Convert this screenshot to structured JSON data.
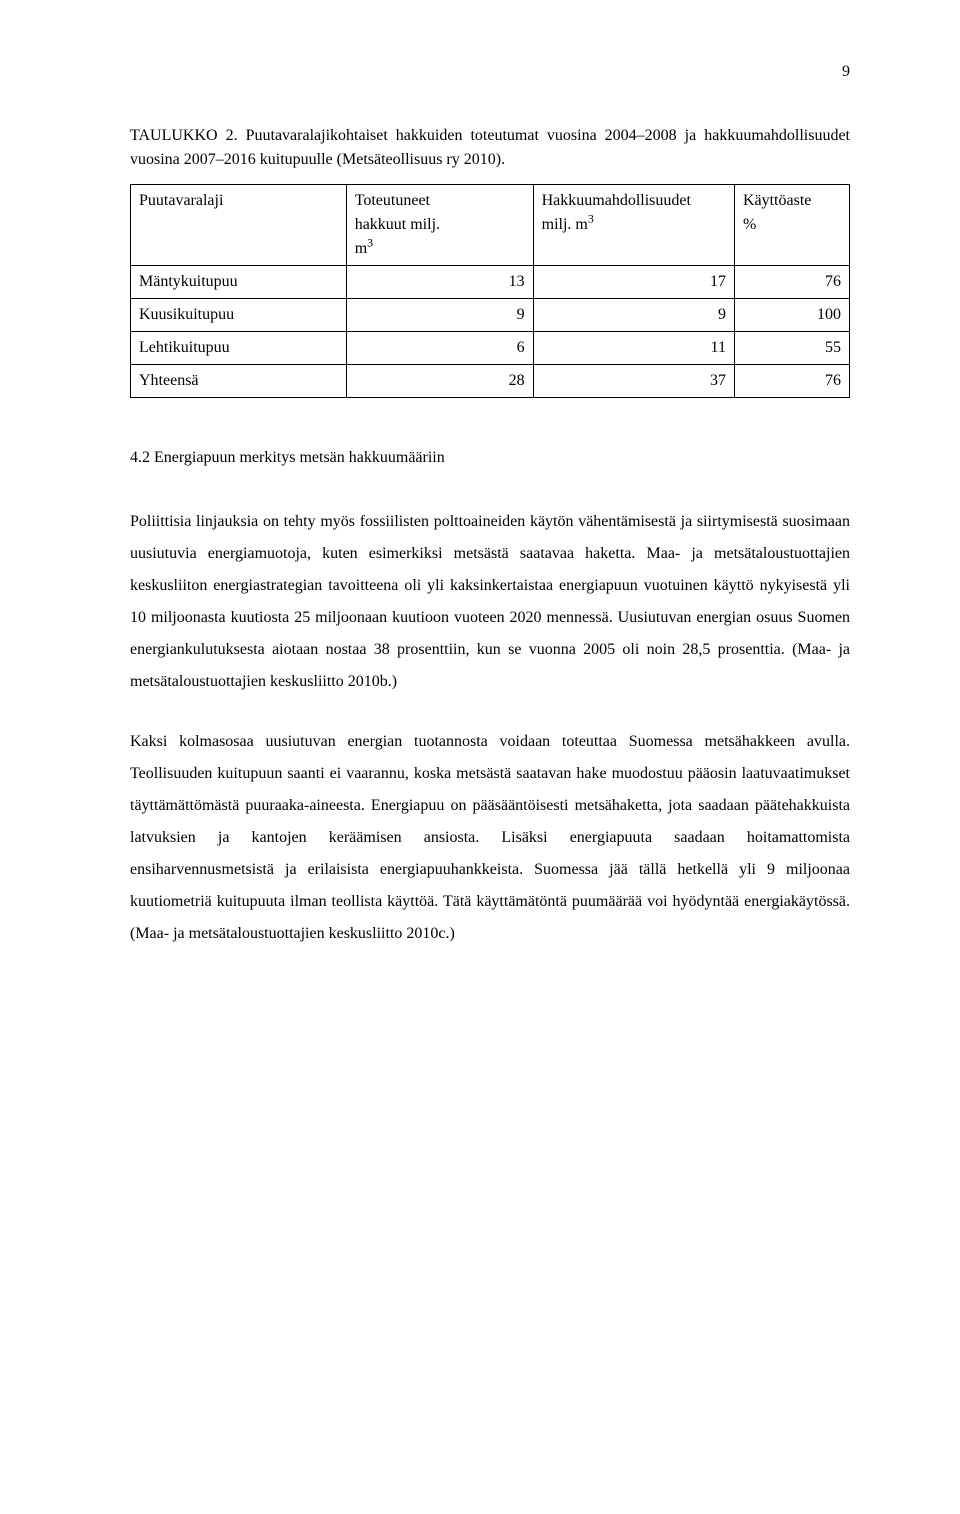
{
  "page_number": "9",
  "table_caption": "TAULUKKO 2. Puutavaralajikohtaiset hakkuiden toteutumat vuosina 2004–2008 ja hakkuumahdollisuudet vuosina 2007–2016 kuitupuulle (Metsäteollisuus ry 2010).",
  "table": {
    "header": {
      "col1": "Puutavaralaji",
      "col2_line1": "Toteutuneet",
      "col2_line2": "hakkuut milj.",
      "col2_line3": "m",
      "col3_line1": "Hakkuumahdollisuudet",
      "col3_line2": "milj. m",
      "col4_line1": "Käyttöaste",
      "col4_line2": "%"
    },
    "rows": [
      {
        "label": "Mäntykuitupuu",
        "v1": "13",
        "v2": "17",
        "v3": "76"
      },
      {
        "label": "Kuusikuitupuu",
        "v1": "9",
        "v2": "9",
        "v3": "100"
      },
      {
        "label": "Lehtikuitupuu",
        "v1": "6",
        "v2": "11",
        "v3": "55"
      },
      {
        "label": "Yhteensä",
        "v1": "28",
        "v2": "37",
        "v3": "76"
      }
    ]
  },
  "section_heading": "4.2 Energiapuun merkitys metsän hakkuumääriin",
  "paragraph1": "Poliittisia linjauksia on tehty myös fossiilisten polttoaineiden käytön vähentämisestä ja siirtymisestä suosimaan uusiutuvia energiamuotoja, kuten esimerkiksi metsästä saatavaa haketta. Maa- ja metsätaloustuottajien keskusliiton energiastrategian tavoitteena oli yli kaksinkertaistaa energiapuun vuotuinen käyttö nykyisestä yli 10 miljoonasta kuutiosta 25 miljoonaan kuutioon vuoteen 2020 mennessä. Uusiutuvan energian osuus Suomen energiankulutuksesta aiotaan nostaa 38 prosenttiin, kun se vuonna 2005 oli noin 28,5 prosenttia. (Maa- ja metsätaloustuottajien keskusliitto 2010b.)",
  "paragraph2": "Kaksi kolmasosaa uusiutuvan energian tuotannosta voidaan toteuttaa Suomessa metsähakkeen avulla. Teollisuuden kuitupuun saanti ei vaarannu, koska metsästä saatavan hake muodostuu pääosin laatuvaatimukset täyttämättömästä puuraaka-aineesta. Energiapuu on pääsääntöisesti metsähaketta, jota saadaan päätehakkuista latvuksien ja kantojen keräämisen ansiosta. Lisäksi energiapuuta saadaan hoitamattomista ensiharvennusmetsistä ja erilaisista energiapuuhankkeista. Suomessa jää tällä hetkellä yli 9 miljoonaa kuutiometriä kuitupuuta ilman teollista käyttöä. Tätä käyttämätöntä puumäärää voi hyödyntää energiakäytössä. (Maa- ja metsätaloustuottajien keskusliitto 2010c.)"
}
